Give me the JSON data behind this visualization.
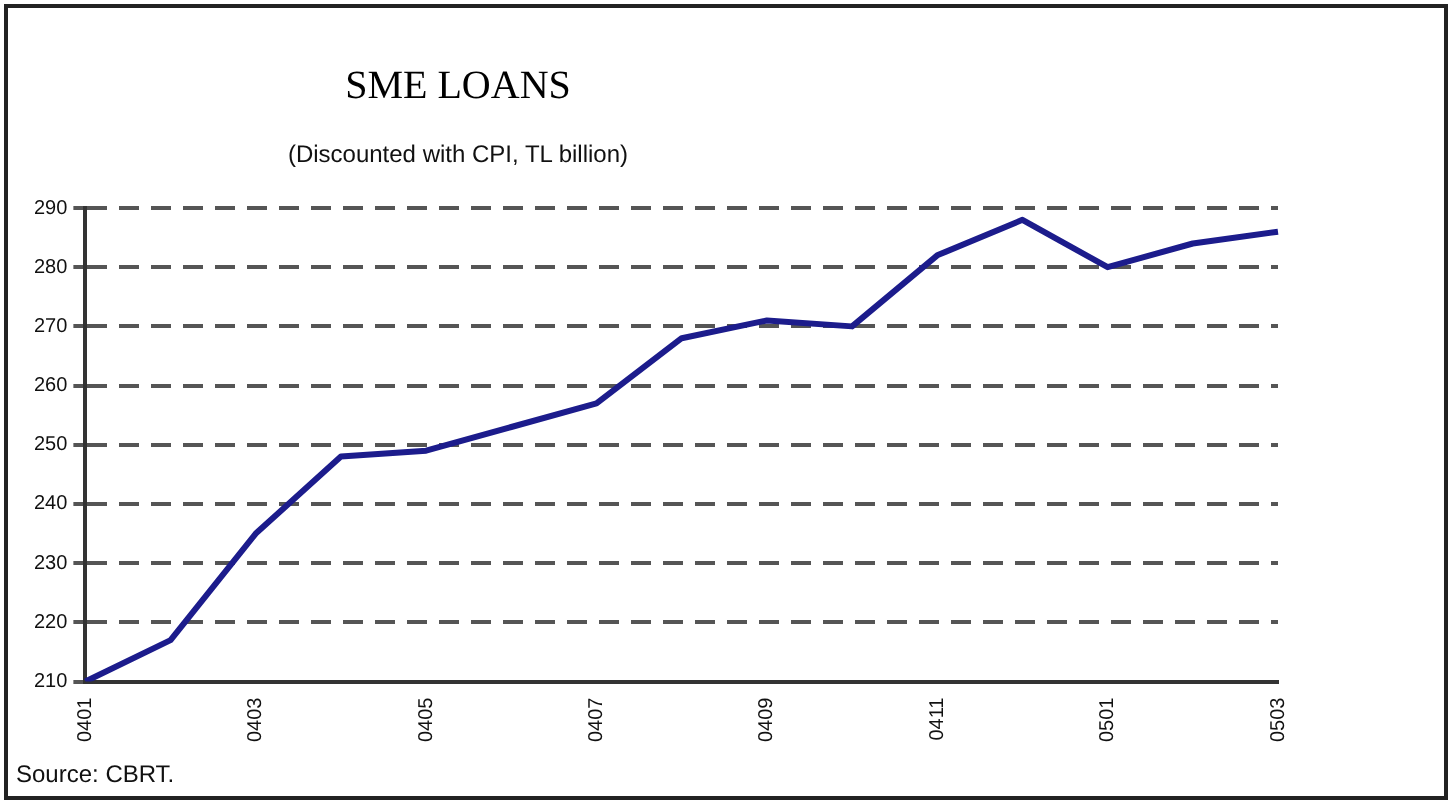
{
  "chart_data": {
    "type": "line",
    "title": "SME LOANS",
    "subtitle": "(Discounted with CPI, TL billion)",
    "categories": [
      "0401",
      null,
      "0403",
      null,
      "0405",
      null,
      "0407",
      null,
      "0409",
      null,
      "0411",
      null,
      "0501",
      null,
      "0503"
    ],
    "series": [
      {
        "color": "#1c1c8c",
        "values": [
          210,
          217,
          235,
          248,
          249,
          253,
          257,
          268,
          271,
          270,
          282,
          288,
          280,
          284,
          286
        ]
      }
    ],
    "ylim": [
      210,
      290
    ],
    "yticks": [
      210,
      220,
      230,
      240,
      250,
      260,
      270,
      280,
      290
    ],
    "grid": "y",
    "legend": false,
    "marker": "none",
    "line_style": "solid",
    "annotations": [
      "Source: CBRT."
    ]
  }
}
